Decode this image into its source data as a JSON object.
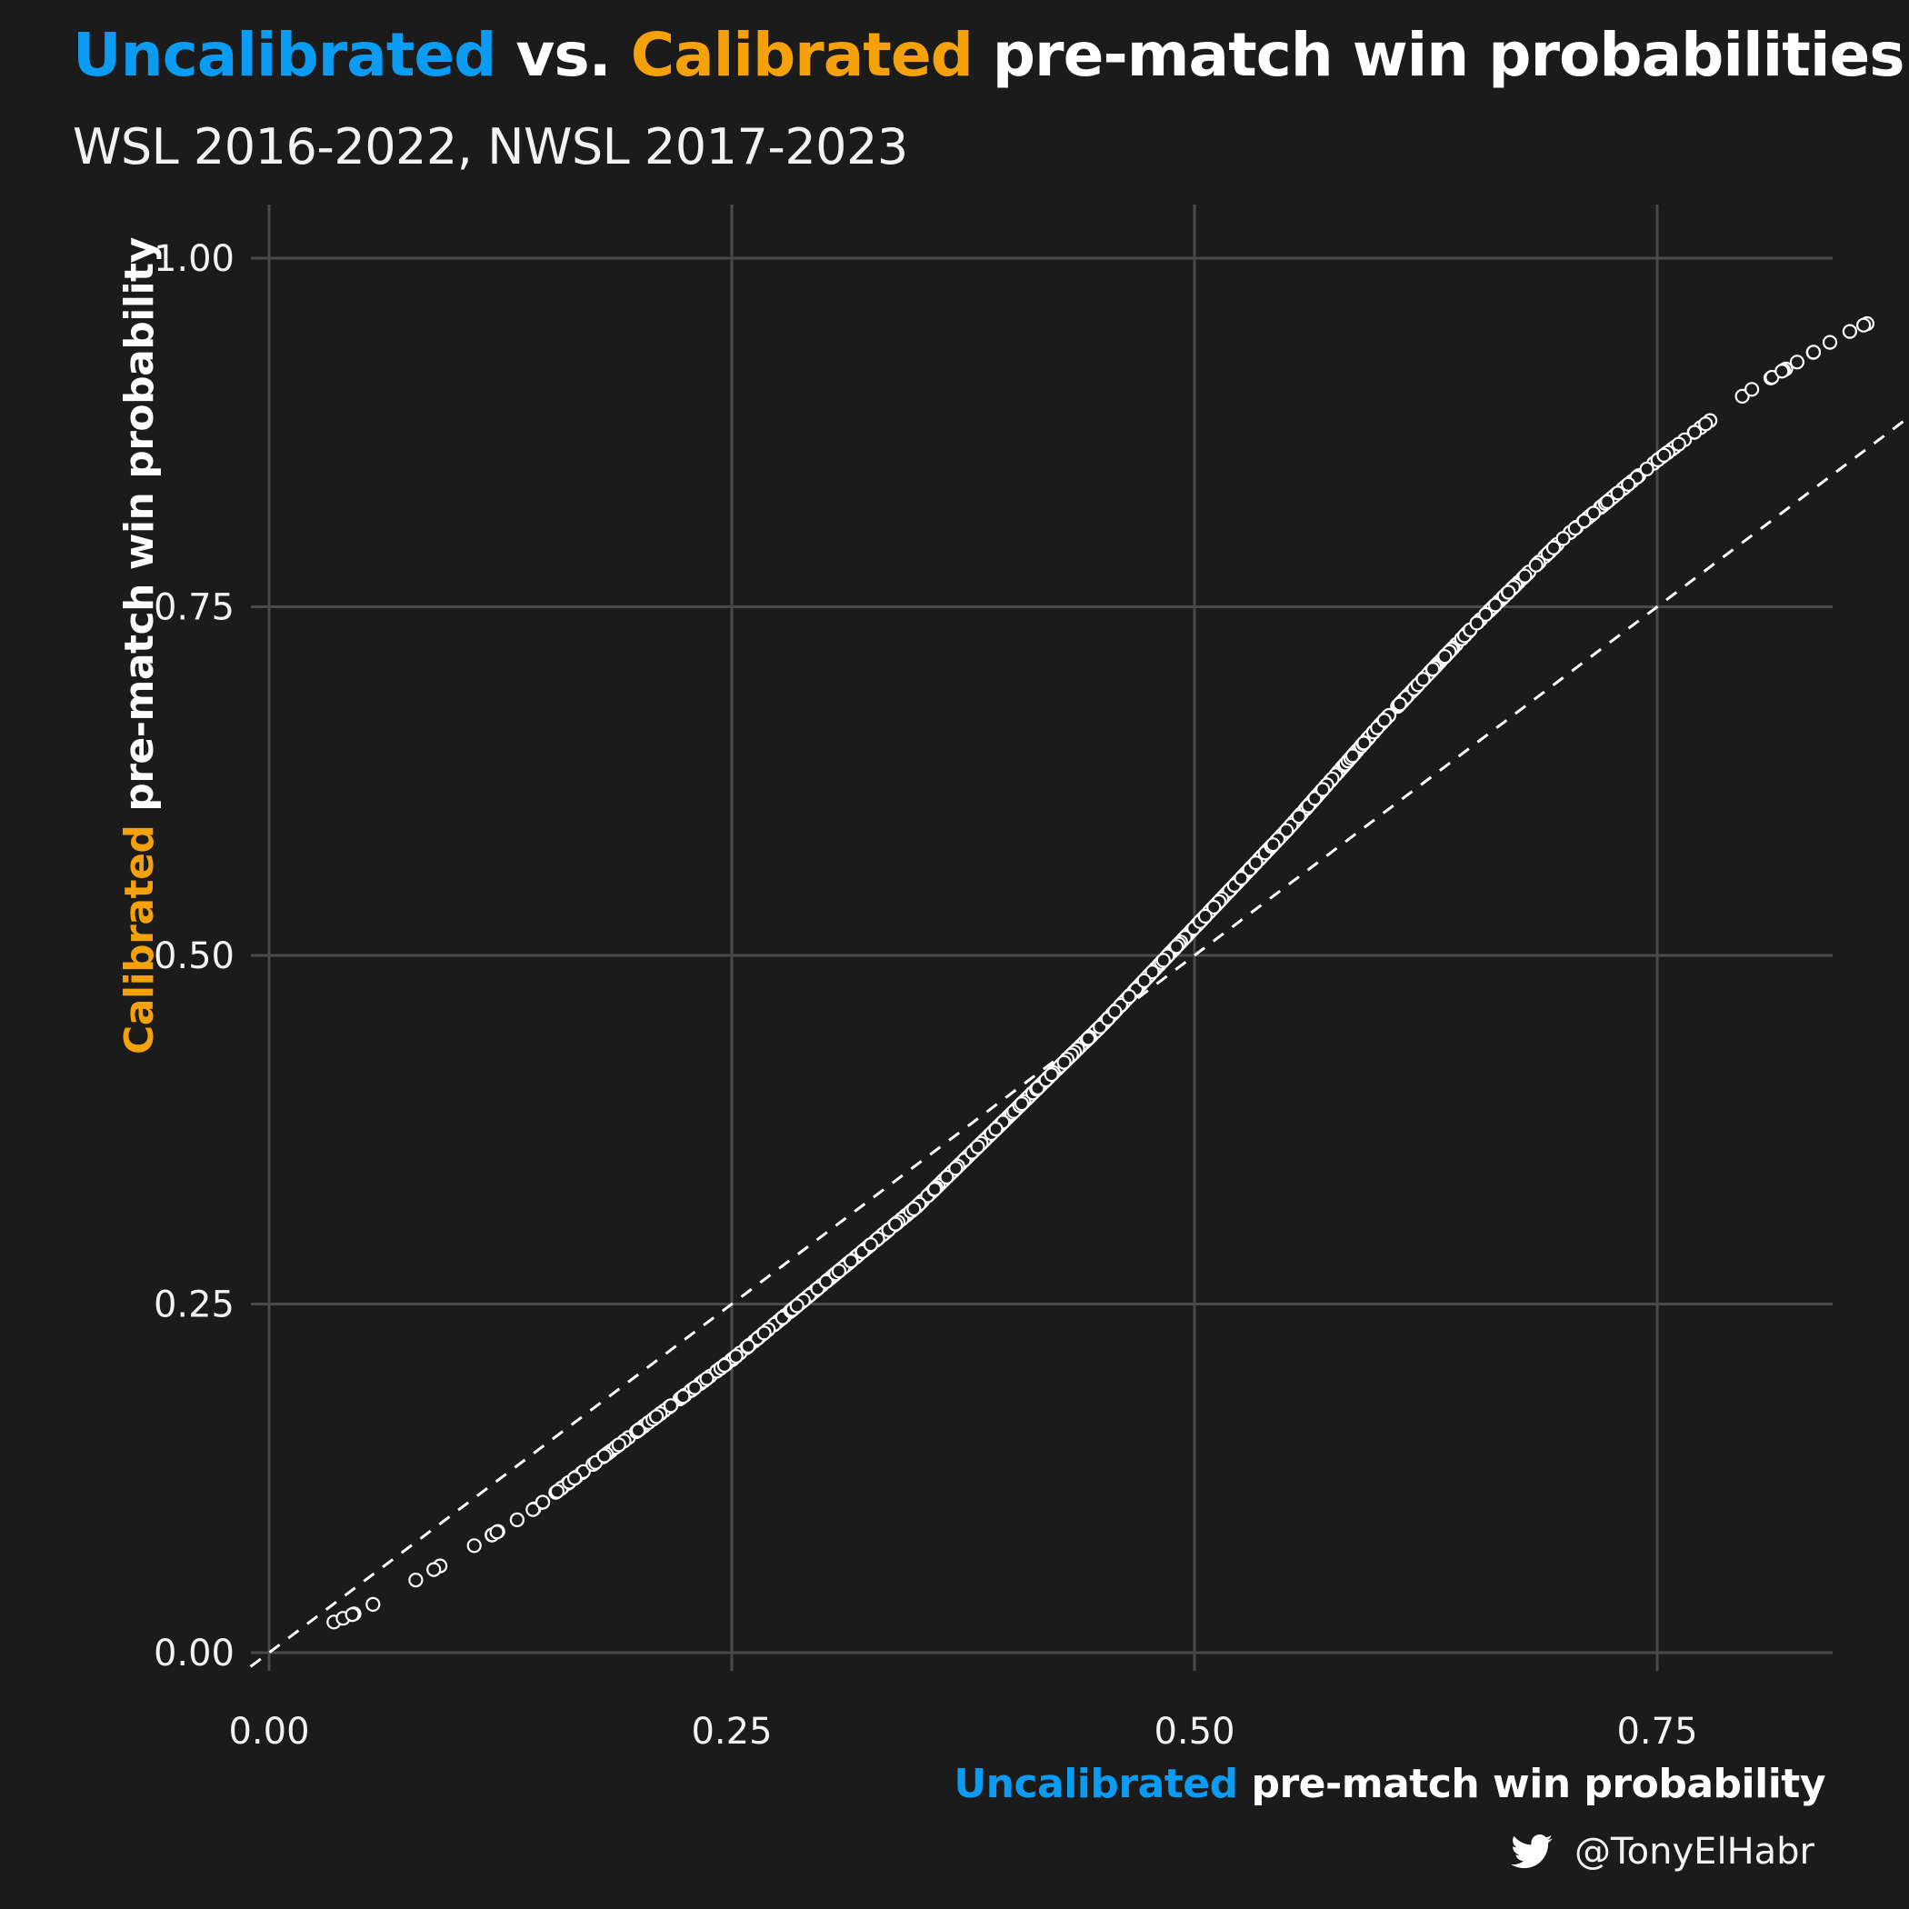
{
  "title": {
    "part1": "Uncalibrated",
    "part2": " vs. ",
    "part3": "Calibrated",
    "part4": " pre-match  win probabilities"
  },
  "subtitle": "WSL 2016-2022, NWSL 2017-2023",
  "x_title": {
    "highlight": "Uncalibrated",
    "rest": " pre-match win probability"
  },
  "y_title": {
    "highlight": "Calibrated",
    "rest": " pre-match win probability"
  },
  "caption": {
    "handle": "@TonyElHabr",
    "icon": "twitter-bird-icon"
  },
  "colors": {
    "background": "#1b1b1b",
    "grid": "#4a4a4a",
    "uncalibrated": "#0a9cf2",
    "calibrated": "#f5a10a",
    "points": "#ffffff"
  },
  "chart_data": {
    "type": "scatter",
    "xlabel": "Uncalibrated pre-match win probability",
    "ylabel": "Calibrated pre-match win probability",
    "xlim": [
      0,
      1
    ],
    "ylim": [
      0,
      1.04
    ],
    "x_ticks": [
      "0.00",
      "0.25",
      "0.50",
      "0.75"
    ],
    "y_ticks": [
      "0.00",
      "0.25",
      "0.50",
      "0.75",
      "1.00"
    ],
    "reference_line": "y = x (dashed)",
    "grid": true,
    "curve_samples": [
      {
        "x": 0.035,
        "y": 0.022
      },
      {
        "x": 0.05,
        "y": 0.03
      },
      {
        "x": 0.07,
        "y": 0.045
      },
      {
        "x": 0.1,
        "y": 0.068
      },
      {
        "x": 0.14,
        "y": 0.1
      },
      {
        "x": 0.18,
        "y": 0.14
      },
      {
        "x": 0.22,
        "y": 0.18
      },
      {
        "x": 0.25,
        "y": 0.21
      },
      {
        "x": 0.3,
        "y": 0.265
      },
      {
        "x": 0.35,
        "y": 0.32
      },
      {
        "x": 0.4,
        "y": 0.385
      },
      {
        "x": 0.45,
        "y": 0.45
      },
      {
        "x": 0.5,
        "y": 0.52
      },
      {
        "x": 0.55,
        "y": 0.59
      },
      {
        "x": 0.6,
        "y": 0.665
      },
      {
        "x": 0.65,
        "y": 0.735
      },
      {
        "x": 0.7,
        "y": 0.8
      },
      {
        "x": 0.75,
        "y": 0.855
      },
      {
        "x": 0.8,
        "y": 0.905
      },
      {
        "x": 0.85,
        "y": 0.945
      },
      {
        "x": 0.9,
        "y": 0.975
      },
      {
        "x": 0.935,
        "y": 0.99
      }
    ]
  }
}
